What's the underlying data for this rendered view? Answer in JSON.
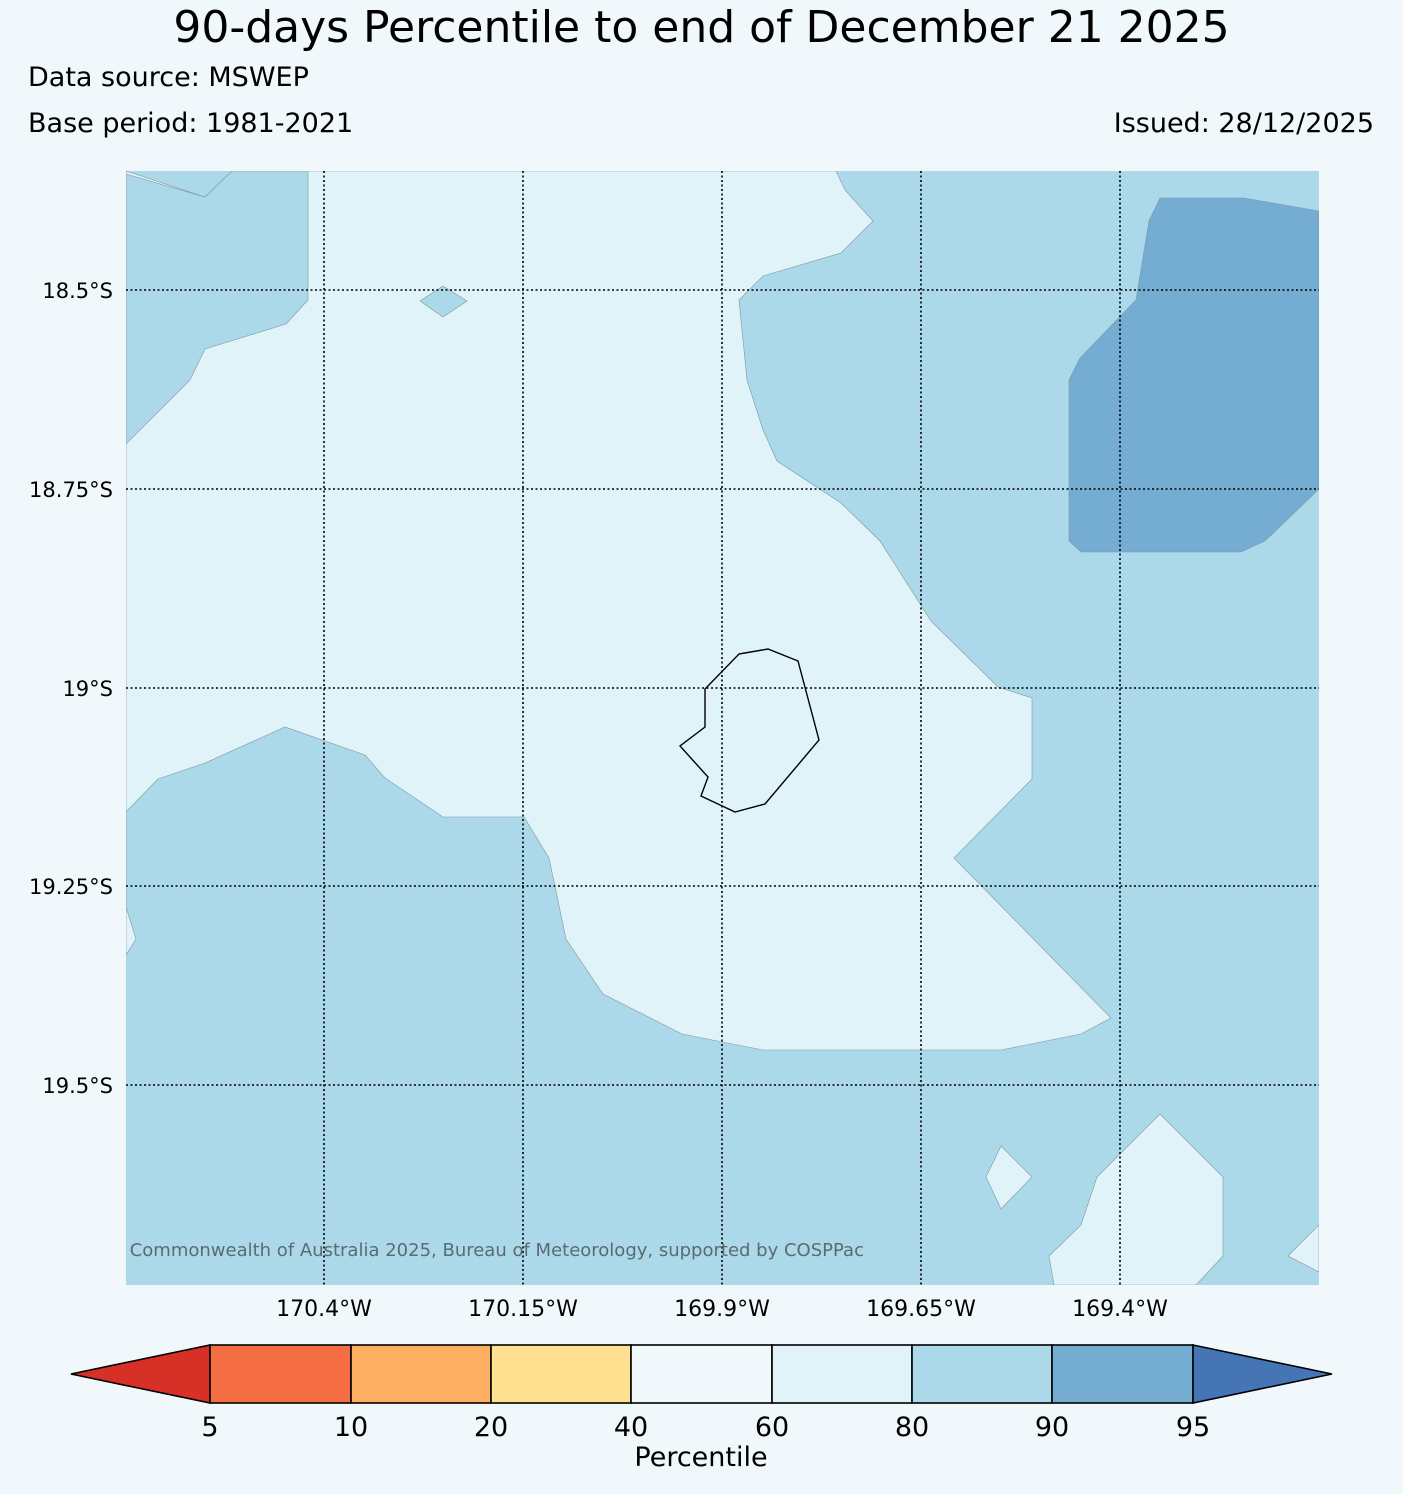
{
  "title": "90-days Percentile to end of December 21 2025",
  "data_source": "Data source: MSWEP",
  "base_period": "Base period: 1981-2021",
  "issued": "Issued: 28/12/2025",
  "map": {
    "lat_labels": [
      "18.5°S",
      "18.75°S",
      "19°S",
      "19.25°S",
      "19.5°S"
    ],
    "lon_labels": [
      "170.4°W",
      "170.15°W",
      "169.9°W",
      "169.65°W",
      "169.4°W"
    ],
    "copyright": "© Commonwealth of Australia 2025, Bureau of Meteorology, supported by COSPPac",
    "region_colors": {
      "p80_90": "#e0f3f8",
      "p90_95": "#abd9e9",
      "p95_plus": "#74add1"
    },
    "grid_style": "dotted"
  },
  "colorbar": {
    "title": "Percentile",
    "tick_labels": [
      "5",
      "10",
      "20",
      "40",
      "60",
      "80",
      "90",
      "95"
    ],
    "extend": "both",
    "colors": [
      "#d73027",
      "#f46d43",
      "#fdae61",
      "#fee090",
      "#f1f8fb",
      "#e0f3f8",
      "#abd9e9",
      "#74add1",
      "#4575b4"
    ]
  }
}
